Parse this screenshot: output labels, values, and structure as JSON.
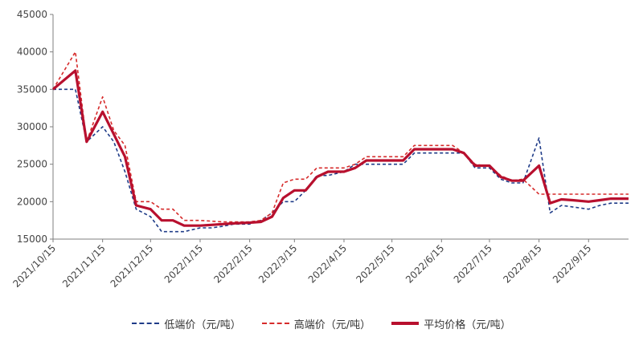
{
  "chart_data": {
    "type": "line",
    "title": "",
    "xlabel": "",
    "ylabel": "",
    "ylim": [
      15000,
      45000
    ],
    "yticks": [
      15000,
      20000,
      25000,
      30000,
      35000,
      40000,
      45000
    ],
    "ytick_labels": [
      "15000",
      "20000",
      "25000",
      "30000",
      "35000",
      "40000",
      "45000"
    ],
    "xlim": [
      "2021-10-15",
      "2022-10-10"
    ],
    "xticks": [
      "2021-10-15",
      "2021-11-15",
      "2021-12-15",
      "2022-01-15",
      "2022-02-15",
      "2022-03-15",
      "2022-04-15",
      "2022-05-15",
      "2022-06-15",
      "2022-07-15",
      "2022-08-15",
      "2022-09-15"
    ],
    "xtick_labels": [
      "2021/10/15",
      "2021/11/15",
      "2021/12/15",
      "2022/1/15",
      "2022/2/15",
      "2022/3/15",
      "2022/4/15",
      "2022/5/15",
      "2022/6/15",
      "2022/7/15",
      "2022/8/15",
      "2022/9/15"
    ],
    "grid": false,
    "legend_position": "bottom",
    "x": [
      "2021-10-15",
      "2021-10-29",
      "2021-11-05",
      "2021-11-15",
      "2021-11-22",
      "2021-11-29",
      "2021-12-06",
      "2021-12-15",
      "2021-12-22",
      "2021-12-29",
      "2022-01-05",
      "2022-01-15",
      "2022-01-22",
      "2022-01-29",
      "2022-02-05",
      "2022-02-15",
      "2022-02-22",
      "2022-03-01",
      "2022-03-08",
      "2022-03-15",
      "2022-03-22",
      "2022-03-29",
      "2022-04-05",
      "2022-04-15",
      "2022-04-22",
      "2022-04-29",
      "2022-05-06",
      "2022-05-15",
      "2022-05-22",
      "2022-05-29",
      "2022-06-06",
      "2022-06-15",
      "2022-06-22",
      "2022-06-29",
      "2022-07-06",
      "2022-07-15",
      "2022-07-22",
      "2022-07-29",
      "2022-08-05",
      "2022-08-15",
      "2022-08-22",
      "2022-08-29",
      "2022-09-05",
      "2022-09-15",
      "2022-09-22",
      "2022-09-29",
      "2022-10-10"
    ],
    "series": [
      {
        "name": "低端价（元/吨）",
        "color": "#1f3c88",
        "style": "dashed",
        "values": [
          35000,
          35000,
          28000,
          30000,
          28000,
          24000,
          19000,
          18000,
          16000,
          16000,
          16000,
          16500,
          16500,
          16700,
          17000,
          17000,
          17500,
          18500,
          20000,
          20000,
          21500,
          23500,
          23500,
          24000,
          25000,
          25000,
          25000,
          25000,
          25000,
          26500,
          26500,
          26500,
          26500,
          26500,
          24500,
          24500,
          23000,
          22500,
          22500,
          28500,
          18500,
          19500,
          19300,
          19000,
          19500,
          19800,
          19800
        ]
      },
      {
        "name": "高端价（元/吨）",
        "color": "#d62b2b",
        "style": "dashed",
        "values": [
          35000,
          40000,
          28000,
          34000,
          29500,
          27500,
          20000,
          20000,
          19000,
          19000,
          17500,
          17500,
          17400,
          17300,
          17300,
          17300,
          17500,
          18500,
          22500,
          23000,
          23000,
          24500,
          24500,
          24500,
          25000,
          26000,
          26000,
          26000,
          26000,
          27500,
          27500,
          27500,
          27500,
          26500,
          25000,
          24700,
          23500,
          22800,
          23000,
          21000,
          21000,
          21000,
          21000,
          21000,
          21000,
          21000,
          21000
        ]
      },
      {
        "name": "平均价格（元/吨）",
        "color": "#b8102e",
        "style": "solid",
        "values": [
          35000,
          37500,
          28000,
          32000,
          29000,
          26000,
          19500,
          19000,
          17500,
          17500,
          16800,
          16800,
          16900,
          17000,
          17100,
          17200,
          17300,
          18000,
          20500,
          21500,
          21500,
          23300,
          24000,
          24000,
          24500,
          25500,
          25500,
          25500,
          25500,
          27000,
          27000,
          27000,
          27000,
          26500,
          24800,
          24800,
          23300,
          22800,
          22800,
          24800,
          19800,
          20300,
          20200,
          20000,
          20200,
          20400,
          20400
        ]
      }
    ]
  }
}
